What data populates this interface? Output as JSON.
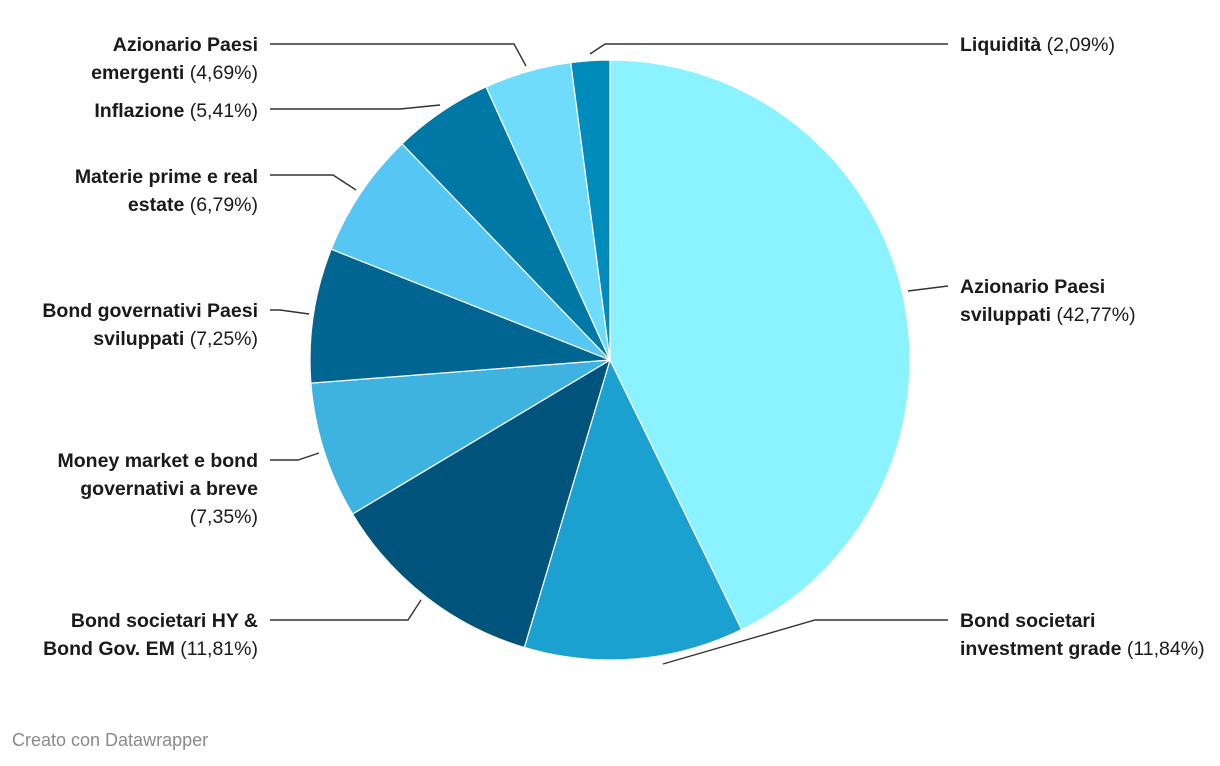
{
  "chart_data": {
    "type": "pie",
    "title": "",
    "start_angle_deg": 0,
    "direction": "clockwise",
    "legend": "none",
    "slices": [
      {
        "name_lines": [
          "Azionario Paesi",
          "sviluppati"
        ],
        "value": 42.77,
        "label": "(42,77%)",
        "color": "#8af3ff"
      },
      {
        "name_lines": [
          "Bond societari",
          "investment grade"
        ],
        "value": 11.84,
        "label": "(11,84%)",
        "color": "#1aa1cf"
      },
      {
        "name_lines": [
          "Bond societari HY &",
          "Bond Gov. EM"
        ],
        "value": 11.81,
        "label": "(11,81%)",
        "color": "#00547b"
      },
      {
        "name_lines": [
          "Money market e bond",
          "governativi a breve"
        ],
        "value": 7.35,
        "label": "(7,35%)",
        "color": "#3eb3e0"
      },
      {
        "name_lines": [
          "Bond governativi Paesi",
          "sviluppati"
        ],
        "value": 7.25,
        "label": "(7,25%)",
        "color": "#006691"
      },
      {
        "name_lines": [
          "Materie prime e real",
          "estate"
        ],
        "value": 6.79,
        "label": "(6,79%)",
        "color": "#56c7f5"
      },
      {
        "name_lines": [
          "Inflazione"
        ],
        "value": 5.41,
        "label": "(5,41%)",
        "color": "#0078a6"
      },
      {
        "name_lines": [
          "Azionario Paesi",
          "emergenti"
        ],
        "value": 4.69,
        "label": "(4,69%)",
        "color": "#70dcfc"
      },
      {
        "name_lines": [
          "Liquidità"
        ],
        "value": 2.09,
        "label": "(2,09%)",
        "color": "#008cbb"
      }
    ]
  },
  "footer": {
    "credit": "Creato con Datawrapper"
  }
}
